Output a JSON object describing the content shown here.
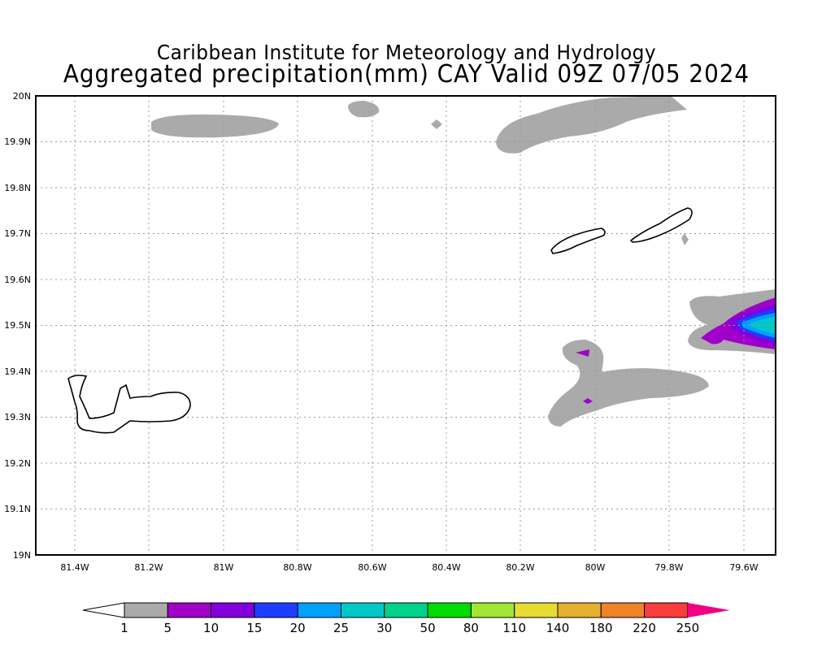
{
  "header": {
    "title_line1": "Caribbean Institute for Meteorology and Hydrology",
    "title_line2": "Aggregated precipitation(mm) CAY Valid 09Z 07/05 2024"
  },
  "map": {
    "lat_labels": [
      "20N",
      "19.9N",
      "19.8N",
      "19.7N",
      "19.6N",
      "19.5N",
      "19.4N",
      "19.3N",
      "19.2N",
      "19.1N",
      "19N"
    ],
    "lon_labels": [
      "81.4W",
      "81.2W",
      "81W",
      "80.8W",
      "80.6W",
      "80.4W",
      "80.2W",
      "80W",
      "79.8W",
      "79.6W"
    ]
  },
  "colorbar": {
    "labels": [
      "1",
      "5",
      "10",
      "15",
      "20",
      "25",
      "30",
      "50",
      "80",
      "110",
      "140",
      "180",
      "220",
      "250"
    ],
    "colors": [
      "#aaaaaa",
      "#a000c8",
      "#8200dc",
      "#1e3cff",
      "#00a0ff",
      "#00c8c8",
      "#00d28c",
      "#00dc00",
      "#a0e632",
      "#e6dc32",
      "#e6af2d",
      "#f08228",
      "#fa3c3c",
      "#f00082"
    ]
  }
}
